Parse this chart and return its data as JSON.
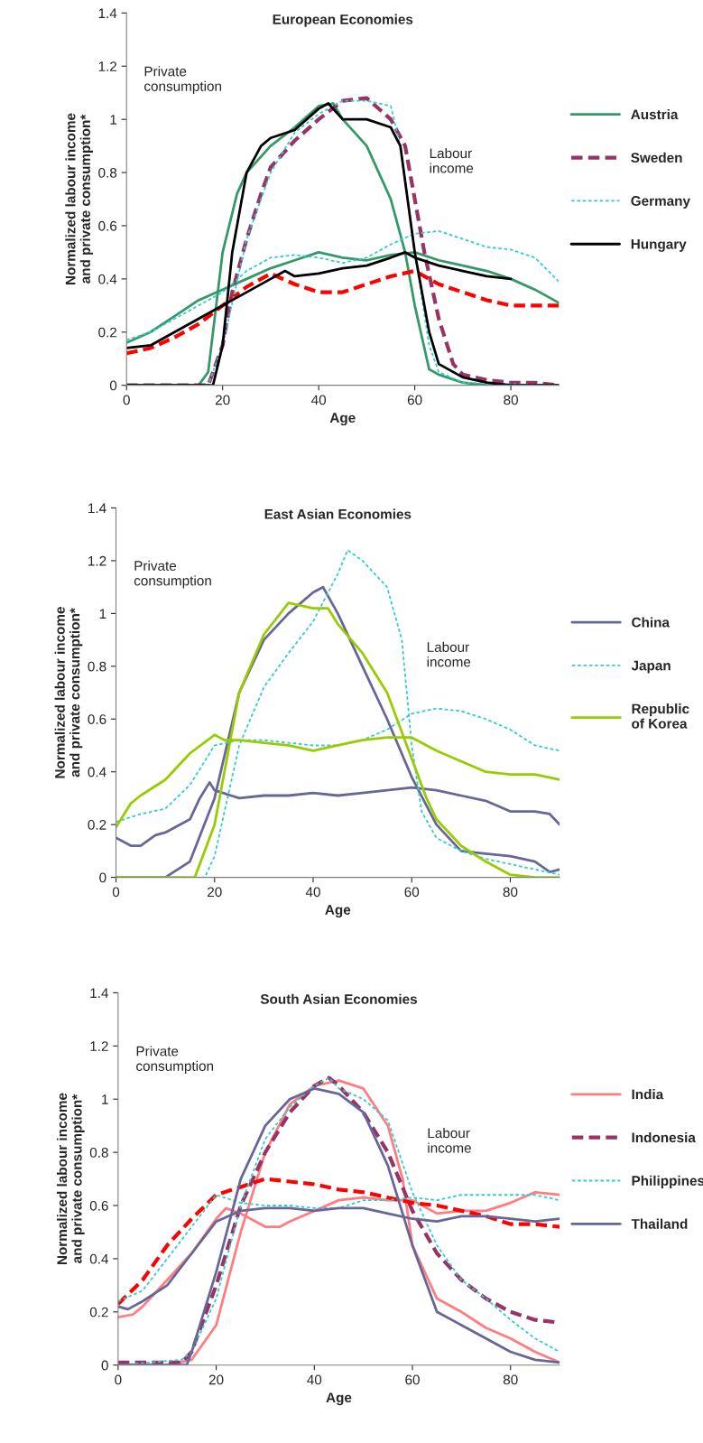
{
  "chart_data": [
    {
      "type": "line",
      "title": "European Economies",
      "xlabel": "Age",
      "ylabel": "Normalized labour income\nand private consumption*",
      "xlim": [
        0,
        90
      ],
      "ylim": [
        0,
        1.4
      ],
      "xticks": [
        0,
        20,
        40,
        60,
        80
      ],
      "yticks": [
        0,
        0.2,
        0.4,
        0.6,
        0.8,
        1,
        1.2,
        1.4
      ],
      "grid": false,
      "legend": "right",
      "annotations": [
        "Private\nconsumption",
        "Labour\nincome"
      ],
      "series": [
        {
          "name": "Austria",
          "color": "#339966",
          "line_style": "solid",
          "x": [
            0,
            10,
            15,
            17,
            20,
            23,
            25,
            30,
            35,
            40,
            43,
            45,
            50,
            55,
            58,
            60,
            63,
            65,
            70,
            75,
            90
          ],
          "values": [
            0,
            0,
            0,
            0.05,
            0.5,
            0.72,
            0.8,
            0.9,
            0.97,
            1.05,
            1.06,
            1.0,
            0.9,
            0.7,
            0.5,
            0.3,
            0.06,
            0.04,
            0.01,
            0,
            0
          ]
        },
        {
          "color": "#339966",
          "line_style": "solid",
          "x": [
            0,
            5,
            10,
            15,
            20,
            25,
            30,
            35,
            40,
            45,
            50,
            55,
            60,
            65,
            70,
            75,
            80,
            85,
            90
          ],
          "values": [
            0.16,
            0.2,
            0.26,
            0.32,
            0.36,
            0.4,
            0.44,
            0.47,
            0.5,
            0.48,
            0.47,
            0.49,
            0.5,
            0.47,
            0.45,
            0.43,
            0.4,
            0.36,
            0.31
          ]
        },
        {
          "name": "Sweden",
          "color": "#993366",
          "line_style": "dashed",
          "x": [
            0,
            10,
            17,
            20,
            22,
            25,
            28,
            30,
            35,
            40,
            45,
            50,
            55,
            58,
            60,
            62,
            65,
            68,
            70,
            75,
            80,
            85,
            90
          ],
          "values": [
            0,
            0,
            0,
            0.15,
            0.35,
            0.55,
            0.72,
            0.82,
            0.92,
            1.0,
            1.07,
            1.08,
            1.0,
            0.9,
            0.7,
            0.5,
            0.25,
            0.08,
            0.04,
            0.02,
            0.01,
            0.01,
            0
          ]
        },
        {
          "color": "#ff0000",
          "line_style": "dashed",
          "x": [
            0,
            5,
            10,
            15,
            20,
            25,
            30,
            35,
            40,
            45,
            50,
            55,
            60,
            65,
            70,
            75,
            80,
            85,
            90
          ],
          "values": [
            0.12,
            0.14,
            0.18,
            0.23,
            0.3,
            0.37,
            0.42,
            0.38,
            0.35,
            0.35,
            0.38,
            0.41,
            0.43,
            0.38,
            0.35,
            0.32,
            0.3,
            0.3,
            0.3
          ]
        },
        {
          "name": "Germany",
          "color": "#33cccc",
          "line_style": "dotted",
          "x": [
            0,
            10,
            17,
            20,
            25,
            30,
            35,
            40,
            45,
            50,
            55,
            57,
            60,
            63,
            65,
            70,
            90
          ],
          "values": [
            0,
            0,
            0,
            0.15,
            0.55,
            0.8,
            0.95,
            1.02,
            1.07,
            1.07,
            1.05,
            0.9,
            0.5,
            0.15,
            0.05,
            0.01,
            0
          ]
        },
        {
          "color": "#33cccc",
          "line_style": "dotted",
          "x": [
            0,
            5,
            10,
            15,
            20,
            25,
            30,
            35,
            40,
            45,
            50,
            55,
            60,
            65,
            70,
            75,
            80,
            85,
            90
          ],
          "values": [
            0.17,
            0.2,
            0.25,
            0.3,
            0.35,
            0.43,
            0.48,
            0.49,
            0.48,
            0.46,
            0.48,
            0.53,
            0.57,
            0.58,
            0.55,
            0.52,
            0.51,
            0.48,
            0.39
          ]
        },
        {
          "name": "Hungary",
          "color": "#000000",
          "line_style": "solid",
          "x": [
            0,
            10,
            18,
            20,
            22,
            25,
            28,
            30,
            35,
            40,
            42,
            45,
            50,
            55,
            57,
            60,
            63,
            65,
            70,
            75,
            80,
            90
          ],
          "values": [
            0,
            0,
            0,
            0.15,
            0.5,
            0.8,
            0.9,
            0.93,
            0.96,
            1.04,
            1.06,
            1.0,
            1.0,
            0.97,
            0.9,
            0.5,
            0.2,
            0.08,
            0.03,
            0.01,
            0,
            0
          ]
        },
        {
          "color": "#000000",
          "line_style": "solid",
          "x": [
            0,
            5,
            10,
            15,
            20,
            25,
            30,
            33,
            35,
            40,
            45,
            50,
            55,
            58,
            60,
            65,
            70,
            75,
            80
          ],
          "values": [
            0.14,
            0.15,
            0.2,
            0.25,
            0.3,
            0.35,
            0.4,
            0.43,
            0.41,
            0.42,
            0.44,
            0.45,
            0.48,
            0.5,
            0.48,
            0.45,
            0.43,
            0.41,
            0.4
          ]
        }
      ]
    },
    {
      "type": "line",
      "title": "East Asian Economies",
      "xlabel": "Age",
      "ylabel": "Normalized labour income\nand private consumption*",
      "xlim": [
        0,
        90
      ],
      "ylim": [
        0,
        1.4
      ],
      "xticks": [
        0,
        20,
        40,
        60,
        80
      ],
      "yticks": [
        0,
        0.2,
        0.4,
        0.6,
        0.8,
        1,
        1.2,
        1.4
      ],
      "grid": false,
      "legend": "right",
      "annotations": [
        "Private\nconsumption",
        "Labour\nincome"
      ],
      "series": [
        {
          "name": "China",
          "color": "#666699",
          "line_style": "solid",
          "x": [
            0,
            10,
            15,
            20,
            25,
            30,
            35,
            40,
            42,
            45,
            50,
            55,
            60,
            65,
            70,
            75,
            80,
            85,
            88,
            90
          ],
          "values": [
            0,
            0,
            0.06,
            0.3,
            0.7,
            0.9,
            1.0,
            1.08,
            1.1,
            1.0,
            0.8,
            0.6,
            0.38,
            0.2,
            0.1,
            0.09,
            0.08,
            0.06,
            0.02,
            0.03
          ]
        },
        {
          "color": "#666699",
          "line_style": "solid",
          "x": [
            0,
            3,
            5,
            8,
            10,
            15,
            17,
            19,
            20,
            25,
            30,
            35,
            40,
            45,
            50,
            55,
            60,
            65,
            70,
            75,
            80,
            85,
            88,
            90
          ],
          "values": [
            0.15,
            0.12,
            0.12,
            0.16,
            0.17,
            0.22,
            0.3,
            0.36,
            0.33,
            0.3,
            0.31,
            0.31,
            0.32,
            0.31,
            0.32,
            0.33,
            0.34,
            0.33,
            0.31,
            0.29,
            0.25,
            0.25,
            0.24,
            0.2
          ]
        },
        {
          "name": "Japan",
          "color": "#33cccc",
          "line_style": "dotted",
          "x": [
            0,
            10,
            18,
            20,
            25,
            30,
            35,
            40,
            45,
            47,
            50,
            55,
            58,
            60,
            62,
            65,
            70,
            75,
            80,
            85,
            90
          ],
          "values": [
            0,
            0,
            0,
            0.08,
            0.5,
            0.72,
            0.85,
            0.97,
            1.15,
            1.24,
            1.2,
            1.1,
            0.9,
            0.5,
            0.25,
            0.15,
            0.1,
            0.07,
            0.05,
            0.03,
            0.01
          ]
        },
        {
          "color": "#33cccc",
          "line_style": "dotted",
          "x": [
            0,
            5,
            10,
            15,
            20,
            25,
            30,
            35,
            40,
            45,
            50,
            55,
            60,
            65,
            70,
            75,
            80,
            85,
            90
          ],
          "values": [
            0.21,
            0.24,
            0.26,
            0.35,
            0.5,
            0.52,
            0.52,
            0.51,
            0.5,
            0.5,
            0.52,
            0.56,
            0.62,
            0.64,
            0.63,
            0.6,
            0.56,
            0.5,
            0.48
          ]
        },
        {
          "name": "Republic\nof Korea",
          "color": "#99cc00",
          "line_style": "solid",
          "x": [
            0,
            10,
            16,
            20,
            25,
            30,
            35,
            40,
            43,
            45,
            50,
            55,
            60,
            63,
            65,
            70,
            75,
            80,
            85,
            90
          ],
          "values": [
            0,
            0,
            0,
            0.2,
            0.7,
            0.92,
            1.04,
            1.02,
            1.02,
            0.96,
            0.85,
            0.7,
            0.45,
            0.3,
            0.22,
            0.12,
            0.06,
            0.01,
            0,
            0
          ]
        },
        {
          "color": "#99cc00",
          "line_style": "solid",
          "x": [
            0,
            3,
            5,
            10,
            15,
            20,
            22,
            25,
            30,
            35,
            40,
            45,
            50,
            55,
            60,
            65,
            70,
            75,
            80,
            85,
            90
          ],
          "values": [
            0.19,
            0.28,
            0.31,
            0.37,
            0.47,
            0.54,
            0.52,
            0.52,
            0.51,
            0.5,
            0.48,
            0.5,
            0.52,
            0.53,
            0.53,
            0.48,
            0.44,
            0.4,
            0.39,
            0.39,
            0.37
          ]
        }
      ]
    },
    {
      "type": "line",
      "title": "South Asian Economies",
      "xlabel": "Age",
      "ylabel": "Normalized labour income\nand private consumption*",
      "xlim": [
        0,
        90
      ],
      "ylim": [
        0,
        1.4
      ],
      "xticks": [
        0,
        20,
        40,
        60,
        80
      ],
      "yticks": [
        0,
        0.2,
        0.4,
        0.6,
        0.8,
        1,
        1.2,
        1.4
      ],
      "grid": false,
      "legend": "right",
      "annotations": [
        "Private\nconsumption",
        "Labour\nincome"
      ],
      "series": [
        {
          "name": "India",
          "color": "#ff7c80",
          "line_style": "solid",
          "x": [
            0,
            10,
            15,
            20,
            25,
            30,
            35,
            40,
            45,
            50,
            55,
            58,
            60,
            65,
            70,
            75,
            80,
            85,
            90
          ],
          "values": [
            0,
            0,
            0.02,
            0.15,
            0.5,
            0.8,
            0.98,
            1.05,
            1.07,
            1.04,
            0.9,
            0.7,
            0.45,
            0.25,
            0.2,
            0.14,
            0.1,
            0.05,
            0.01
          ]
        },
        {
          "color": "#ff7c80",
          "line_style": "solid",
          "x": [
            0,
            3,
            5,
            10,
            15,
            20,
            22,
            25,
            30,
            33,
            35,
            40,
            45,
            50,
            55,
            60,
            65,
            70,
            75,
            80,
            85,
            90
          ],
          "values": [
            0.18,
            0.19,
            0.22,
            0.32,
            0.42,
            0.55,
            0.59,
            0.57,
            0.52,
            0.52,
            0.54,
            0.58,
            0.62,
            0.63,
            0.62,
            0.62,
            0.57,
            0.58,
            0.58,
            0.61,
            0.65,
            0.64
          ]
        },
        {
          "name": "Indonesia",
          "color": "#993366",
          "line_style": "dashed",
          "x": [
            0,
            13,
            15,
            20,
            25,
            30,
            35,
            40,
            43,
            45,
            50,
            55,
            60,
            65,
            70,
            75,
            80,
            85,
            90
          ],
          "values": [
            0.01,
            0.01,
            0.05,
            0.3,
            0.6,
            0.8,
            0.95,
            1.05,
            1.08,
            1.05,
            0.95,
            0.8,
            0.58,
            0.42,
            0.32,
            0.25,
            0.2,
            0.17,
            0.16
          ]
        },
        {
          "color": "#ff0000",
          "line_style": "dashed",
          "x": [
            0,
            5,
            10,
            15,
            20,
            25,
            30,
            35,
            40,
            45,
            50,
            55,
            60,
            65,
            70,
            75,
            80,
            85,
            90
          ],
          "values": [
            0.23,
            0.32,
            0.45,
            0.55,
            0.64,
            0.67,
            0.7,
            0.69,
            0.68,
            0.66,
            0.65,
            0.63,
            0.61,
            0.6,
            0.58,
            0.56,
            0.53,
            0.53,
            0.52
          ]
        },
        {
          "name": "Philippines",
          "color": "#33cccc",
          "line_style": "dotted",
          "x": [
            0,
            13,
            15,
            20,
            25,
            30,
            35,
            40,
            43,
            45,
            50,
            55,
            60,
            65,
            70,
            75,
            80,
            85,
            90
          ],
          "values": [
            0,
            0.02,
            0.05,
            0.25,
            0.6,
            0.85,
            0.97,
            1.05,
            1.08,
            1.04,
            1.0,
            0.92,
            0.65,
            0.45,
            0.32,
            0.25,
            0.17,
            0.1,
            0.05
          ]
        },
        {
          "color": "#33cccc",
          "line_style": "dotted",
          "x": [
            0,
            5,
            10,
            15,
            20,
            25,
            30,
            35,
            40,
            45,
            50,
            55,
            60,
            65,
            70,
            75,
            80,
            85,
            90
          ],
          "values": [
            0.24,
            0.28,
            0.4,
            0.52,
            0.64,
            0.61,
            0.6,
            0.6,
            0.59,
            0.59,
            0.62,
            0.62,
            0.63,
            0.62,
            0.64,
            0.64,
            0.64,
            0.64,
            0.62
          ]
        },
        {
          "name": "Thailand",
          "color": "#666699",
          "line_style": "solid",
          "x": [
            0,
            10,
            14,
            15,
            20,
            25,
            30,
            35,
            40,
            45,
            50,
            55,
            60,
            65,
            70,
            75,
            80,
            85,
            90
          ],
          "values": [
            0,
            0,
            0,
            0.05,
            0.35,
            0.7,
            0.9,
            1.0,
            1.04,
            1.02,
            0.95,
            0.75,
            0.45,
            0.2,
            0.15,
            0.1,
            0.05,
            0.02,
            0.01
          ]
        },
        {
          "color": "#666699",
          "line_style": "solid",
          "x": [
            0,
            2,
            5,
            10,
            15,
            20,
            25,
            30,
            35,
            40,
            45,
            50,
            55,
            60,
            65,
            70,
            75,
            80,
            85,
            90
          ],
          "values": [
            0.22,
            0.21,
            0.24,
            0.3,
            0.42,
            0.54,
            0.58,
            0.59,
            0.59,
            0.58,
            0.59,
            0.59,
            0.57,
            0.55,
            0.54,
            0.56,
            0.56,
            0.55,
            0.54,
            0.55
          ]
        }
      ]
    }
  ]
}
